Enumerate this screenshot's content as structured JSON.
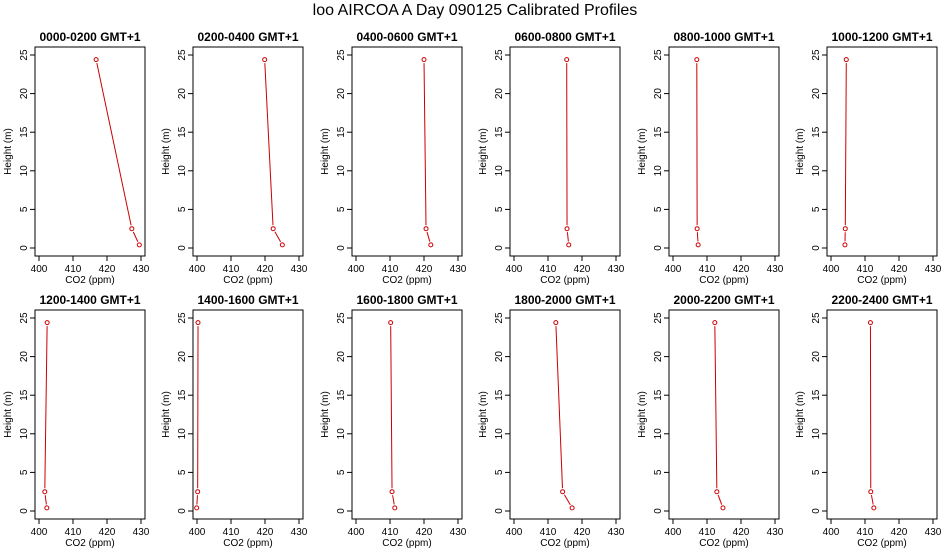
{
  "title": "loo AIRCOA A  Day 090125  Calibrated Profiles",
  "chart_data": {
    "type": "line",
    "xlabel": "CO2 (ppm)",
    "ylabel": "Height (m)",
    "xlim": [
      400,
      430
    ],
    "ylim": [
      0,
      25
    ],
    "x_ticks": [
      400,
      410,
      420,
      430
    ],
    "y_ticks": [
      0,
      5,
      10,
      15,
      20,
      25
    ],
    "color": "#cc0000",
    "heights": [
      24.4,
      2.5,
      0.4
    ],
    "panels": [
      {
        "label": "0000-0200 GMT+1",
        "x": [
          416.8,
          427.3,
          429.5
        ]
      },
      {
        "label": "0200-0400 GMT+1",
        "x": [
          419.9,
          422.4,
          425.1
        ]
      },
      {
        "label": "0400-0600 GMT+1",
        "x": [
          420.0,
          420.6,
          422.0
        ]
      },
      {
        "label": "0600-0800 GMT+1",
        "x": [
          415.5,
          415.6,
          416.1
        ]
      },
      {
        "label": "0800-1000 GMT+1",
        "x": [
          407.0,
          407.1,
          407.4
        ]
      },
      {
        "label": "1000-1200 GMT+1",
        "x": [
          404.5,
          404.2,
          404.1
        ]
      },
      {
        "label": "1200-1400 GMT+1",
        "x": [
          402.4,
          401.7,
          402.3
        ]
      },
      {
        "label": "1400-1600 GMT+1",
        "x": [
          400.3,
          400.2,
          399.9
        ]
      },
      {
        "label": "1600-1800 GMT+1",
        "x": [
          410.2,
          410.6,
          411.4
        ]
      },
      {
        "label": "1800-2000 GMT+1",
        "x": [
          412.3,
          414.3,
          417.1
        ]
      },
      {
        "label": "2000-2200 GMT+1",
        "x": [
          412.3,
          412.9,
          414.7
        ]
      },
      {
        "label": "2200-2400 GMT+1",
        "x": [
          411.6,
          411.7,
          412.6
        ]
      }
    ]
  }
}
